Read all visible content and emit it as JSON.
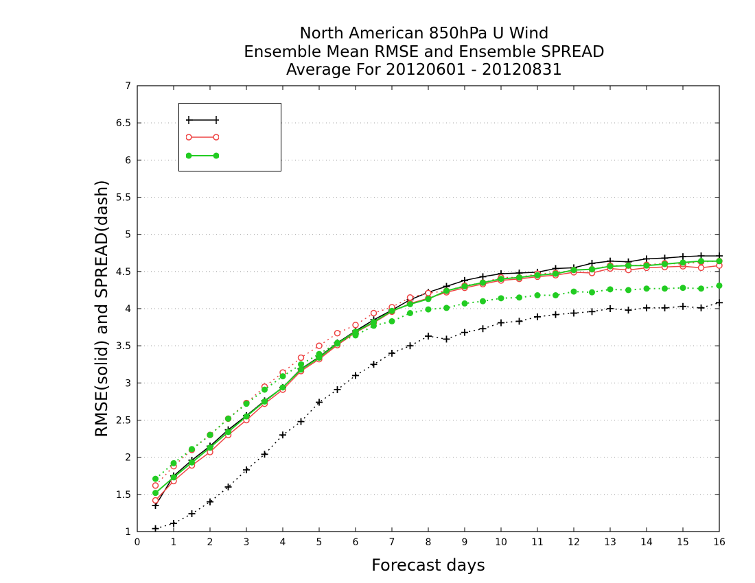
{
  "chart_data": {
    "type": "line",
    "title": [
      "North American 850hPa U Wind",
      "Ensemble Mean RMSE and Ensemble SPREAD",
      "Average For 20120601 - 20120831"
    ],
    "xlabel": "Forecast days",
    "ylabel": "RMSE(solid) and SPREAD(dash)",
    "xlim": [
      0,
      16
    ],
    "ylim": [
      1,
      7
    ],
    "xticks": [
      "0",
      "1",
      "2",
      "3",
      "4",
      "5",
      "6",
      "7",
      "8",
      "9",
      "10",
      "11",
      "12",
      "13",
      "14",
      "15",
      "16"
    ],
    "yticks": [
      "1",
      "1.5",
      "2",
      "2.5",
      "3",
      "3.5",
      "4",
      "4.5",
      "5",
      "5.5",
      "6",
      "6.5",
      "7"
    ],
    "grid": true,
    "legend_position": "top-left",
    "x": [
      0.5,
      1,
      1.5,
      2,
      2.5,
      3,
      3.5,
      4,
      4.5,
      5,
      5.5,
      6,
      6.5,
      7,
      7.5,
      8,
      8.5,
      9,
      9.5,
      10,
      10.5,
      11,
      11.5,
      12,
      12.5,
      13,
      13.5,
      14,
      14.5,
      15,
      15.5,
      16
    ],
    "series": [
      {
        "name": "",
        "color": "#000000",
        "marker": "plus",
        "rmse": [
          1.35,
          1.75,
          1.96,
          2.15,
          2.37,
          2.56,
          2.76,
          2.94,
          3.19,
          3.35,
          3.54,
          3.7,
          3.85,
          3.98,
          4.12,
          4.22,
          4.3,
          4.38,
          4.43,
          4.47,
          4.48,
          4.49,
          4.54,
          4.55,
          4.61,
          4.64,
          4.63,
          4.67,
          4.68,
          4.7,
          4.71,
          4.71
        ],
        "spread": [
          1.04,
          1.11,
          1.24,
          1.4,
          1.6,
          1.83,
          2.04,
          2.3,
          2.48,
          2.74,
          2.91,
          3.1,
          3.25,
          3.4,
          3.5,
          3.63,
          3.59,
          3.68,
          3.73,
          3.81,
          3.83,
          3.89,
          3.92,
          3.94,
          3.96,
          4.0,
          3.98,
          4.01,
          4.01,
          4.03,
          4.01,
          4.08
        ]
      },
      {
        "name": "",
        "color": "#ee4444",
        "marker": "open-circle",
        "rmse": [
          1.42,
          1.68,
          1.89,
          2.07,
          2.3,
          2.5,
          2.72,
          2.91,
          3.16,
          3.32,
          3.51,
          3.68,
          3.81,
          3.96,
          4.07,
          4.14,
          4.22,
          4.28,
          4.33,
          4.38,
          4.4,
          4.43,
          4.45,
          4.49,
          4.48,
          4.54,
          4.52,
          4.55,
          4.56,
          4.57,
          4.55,
          4.58
        ],
        "spread": [
          1.62,
          1.88,
          2.1,
          2.3,
          2.52,
          2.73,
          2.95,
          3.14,
          3.34,
          3.5,
          3.67,
          3.78,
          3.94,
          4.02,
          4.15,
          4.21,
          4.24,
          4.31,
          4.35,
          4.42,
          4.42,
          4.47,
          4.48,
          4.52,
          4.53,
          4.58,
          4.58,
          4.59,
          4.61,
          4.6,
          4.63,
          4.64
        ]
      },
      {
        "name": "",
        "color": "#22cc22",
        "marker": "filled-circle",
        "rmse": [
          1.52,
          1.73,
          1.93,
          2.13,
          2.34,
          2.55,
          2.75,
          2.94,
          3.18,
          3.34,
          3.53,
          3.69,
          3.82,
          3.97,
          4.06,
          4.13,
          4.24,
          4.3,
          4.35,
          4.4,
          4.42,
          4.45,
          4.47,
          4.52,
          4.53,
          4.57,
          4.58,
          4.58,
          4.6,
          4.62,
          4.64,
          4.64
        ],
        "spread": [
          1.71,
          1.92,
          2.11,
          2.3,
          2.52,
          2.72,
          2.91,
          3.09,
          3.25,
          3.39,
          3.54,
          3.64,
          3.77,
          3.83,
          3.94,
          3.99,
          4.01,
          4.07,
          4.1,
          4.14,
          4.15,
          4.18,
          4.18,
          4.23,
          4.22,
          4.26,
          4.25,
          4.27,
          4.27,
          4.28,
          4.27,
          4.31
        ]
      }
    ]
  },
  "legend_labels": [
    "",
    "",
    ""
  ]
}
